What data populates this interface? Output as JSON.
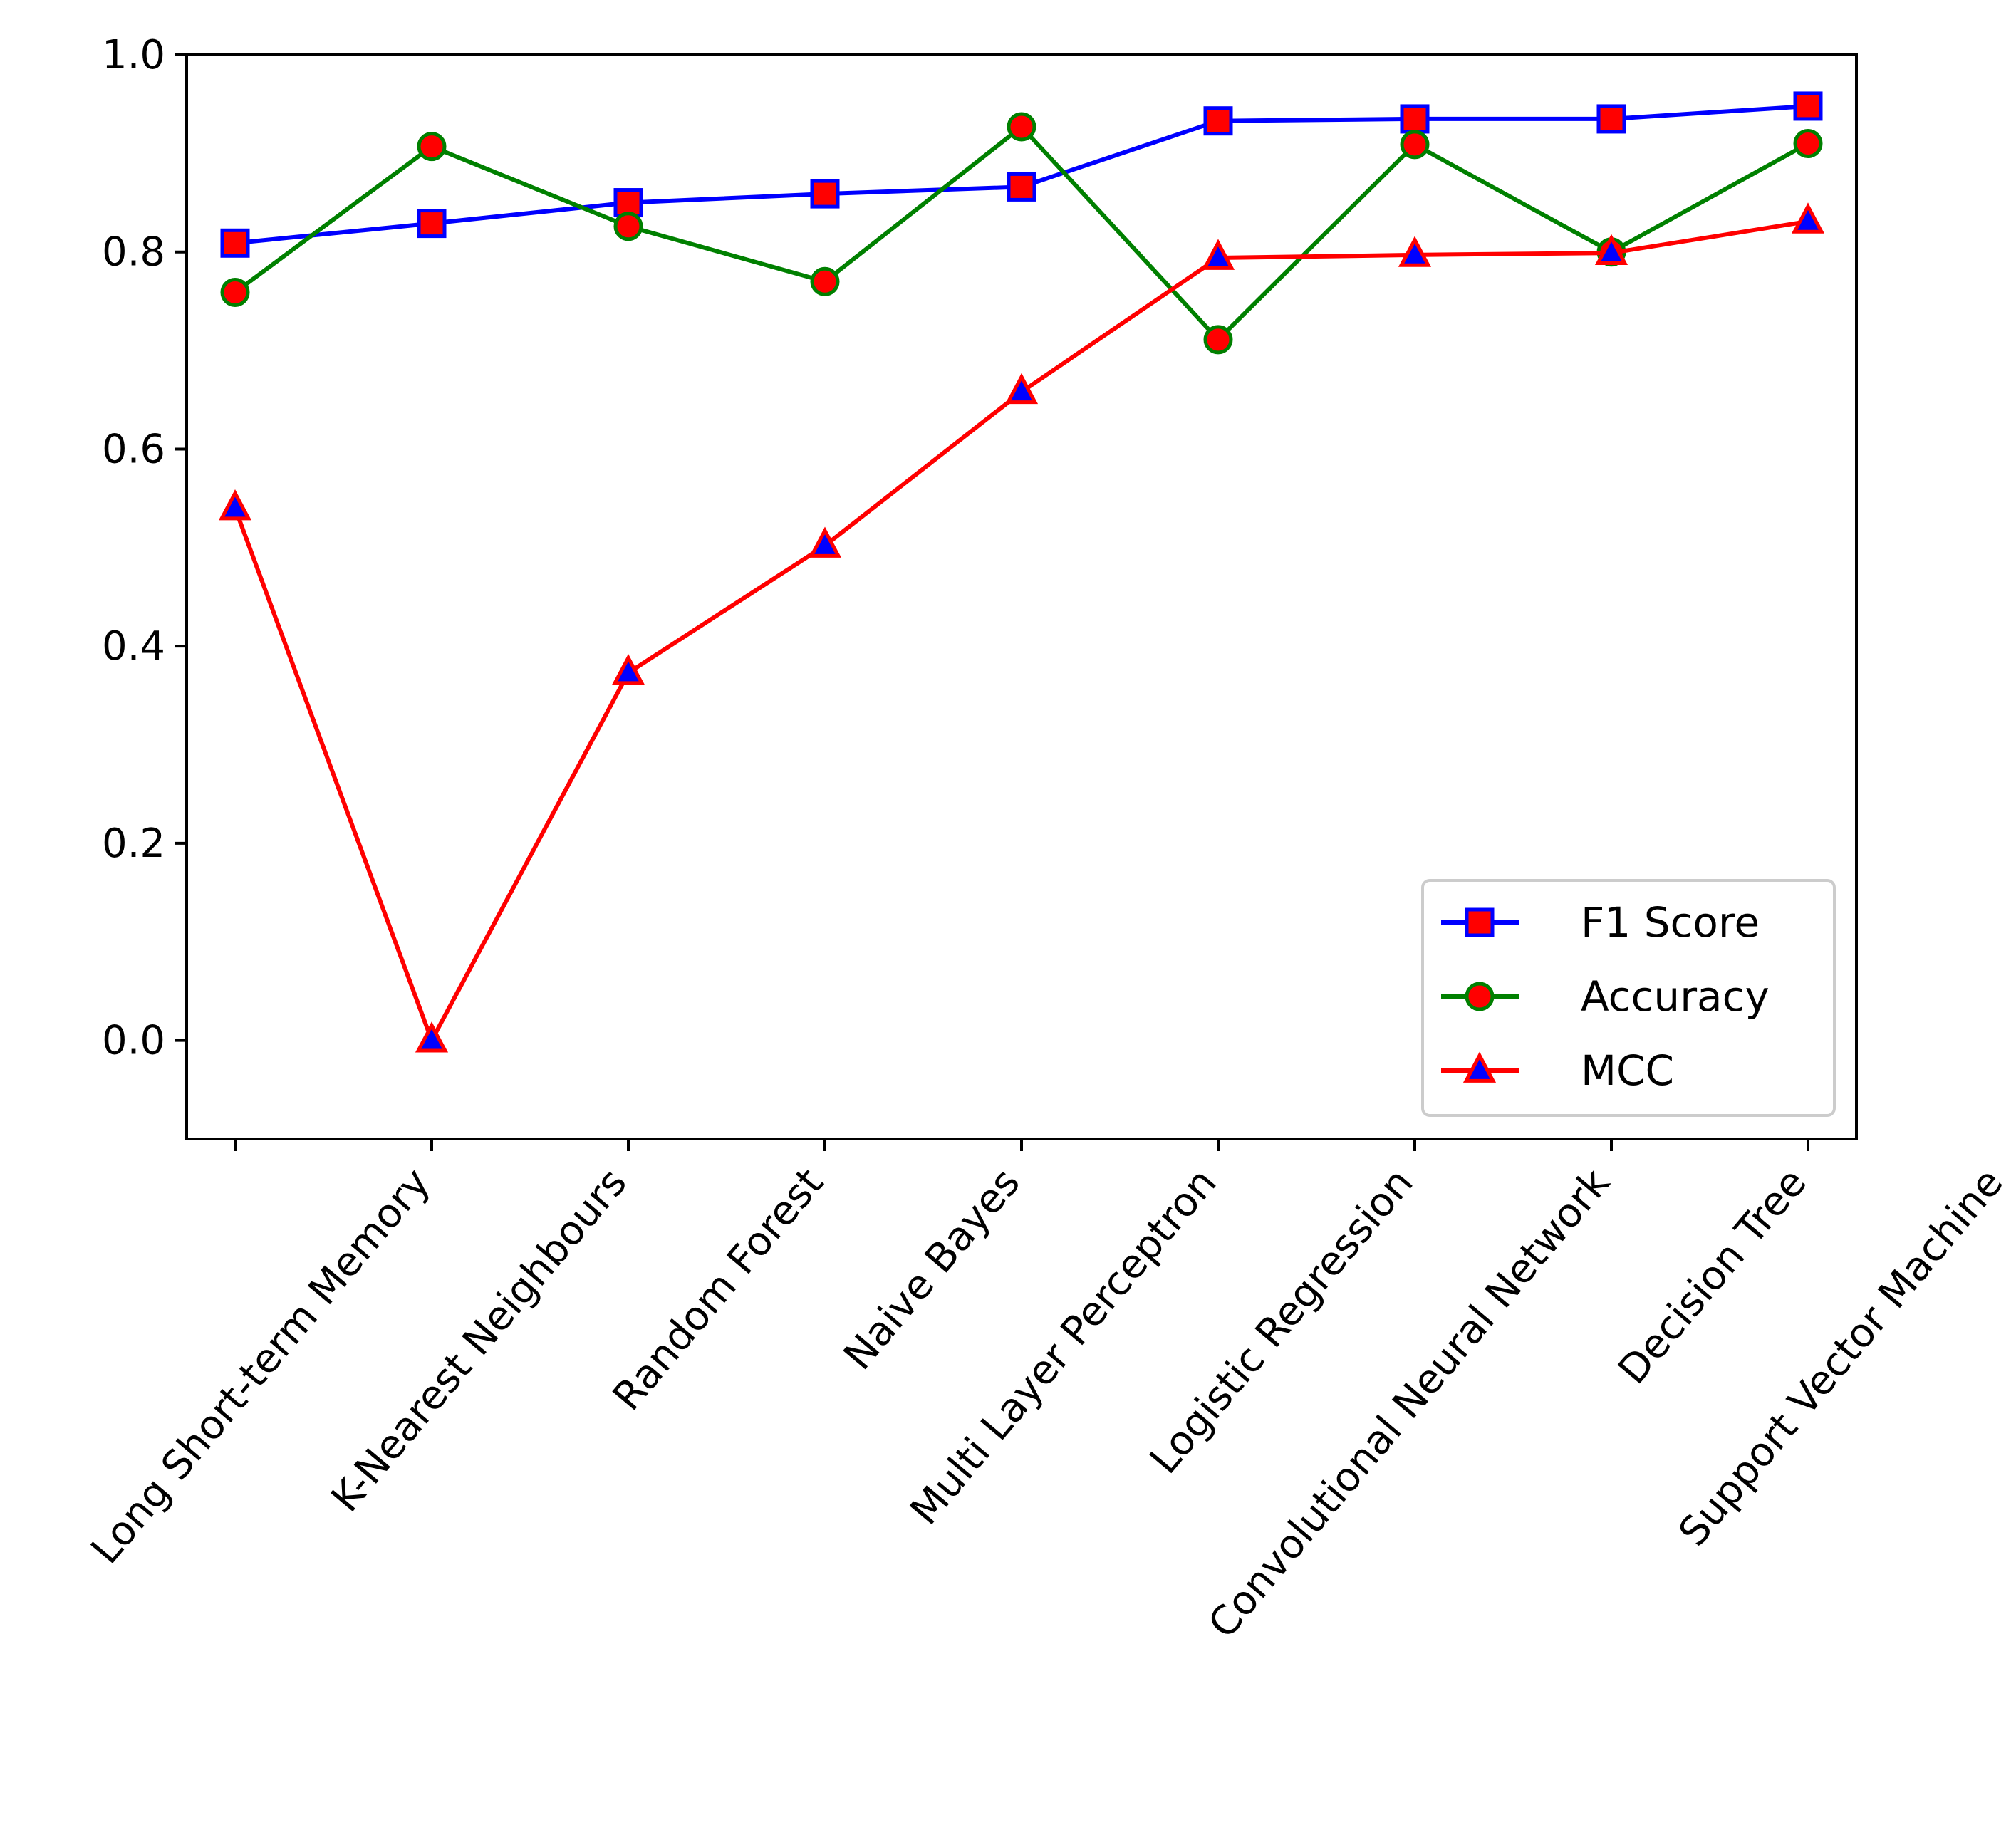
{
  "chart_data": {
    "type": "line",
    "title": "",
    "xlabel": "",
    "ylabel": "",
    "categories": [
      "Long Short-term Memory",
      "K-Nearest Neighbours",
      "Random Forest",
      "Naive Bayes",
      "Multi Layer Perceptron",
      "Logistic Regression",
      "Convolutional Neural Network",
      "Decision Tree",
      "Support Vector Machine"
    ],
    "ylim": [
      -0.1,
      1.0
    ],
    "yticks": [
      0.0,
      0.2,
      0.4,
      0.6,
      0.8,
      1.0
    ],
    "ytick_labels": [
      "0.0",
      "0.2",
      "0.4",
      "0.6",
      "0.8",
      "1.0"
    ],
    "grid": false,
    "legend_position": "lower right",
    "series": [
      {
        "name": "F1 Score",
        "line_color": "#0000ff",
        "marker": "square",
        "marker_fill": "#ff0000",
        "marker_edge": "#0000ff",
        "values": [
          0.809,
          0.829,
          0.85,
          0.859,
          0.866,
          0.933,
          0.935,
          0.935,
          0.948
        ]
      },
      {
        "name": "Accuracy",
        "line_color": "#008000",
        "marker": "circle",
        "marker_fill": "#ff0000",
        "marker_edge": "#008000",
        "values": [
          0.759,
          0.907,
          0.826,
          0.77,
          0.927,
          0.711,
          0.909,
          0.8,
          0.91
        ]
      },
      {
        "name": "MCC",
        "line_color": "#ff0000",
        "marker": "triangle",
        "marker_fill": "#0000ff",
        "marker_edge": "#ff0000",
        "values": [
          0.54,
          0.0,
          0.373,
          0.502,
          0.658,
          0.794,
          0.797,
          0.799,
          0.831
        ]
      }
    ]
  }
}
